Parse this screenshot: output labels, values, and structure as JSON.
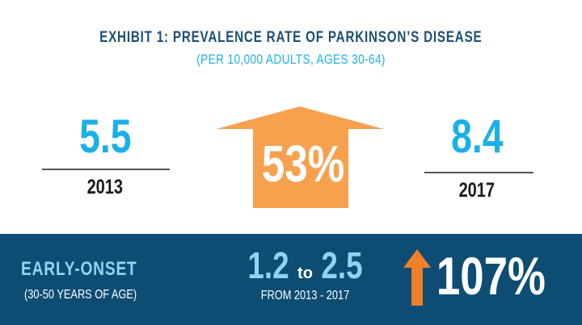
{
  "header": {
    "title": "EXHIBIT 1:  PREVALENCE RATE OF PARKINSON’S DISEASE",
    "subtitle": "(PER 10,000 ADULTS, AGES 30-64)"
  },
  "main": {
    "left": {
      "value": "5.5",
      "year": "2013"
    },
    "change": {
      "value": "53%"
    },
    "right": {
      "value": "8.4",
      "year": "2017"
    }
  },
  "early_onset": {
    "label": "EARLY-ONSET",
    "sublabel": "(30-50 YEARS OF AGE)",
    "from_value": "1.2",
    "to_word": "to",
    "to_value": "2.5",
    "period": "FROM 2013 - 2017",
    "change": "107%"
  },
  "colors": {
    "navy": "#0e4d73",
    "cyan": "#1ab0e8",
    "light_blue": "#8fd4f2",
    "orange": "#f7a14f",
    "dark_orange": "#f07f2a"
  }
}
